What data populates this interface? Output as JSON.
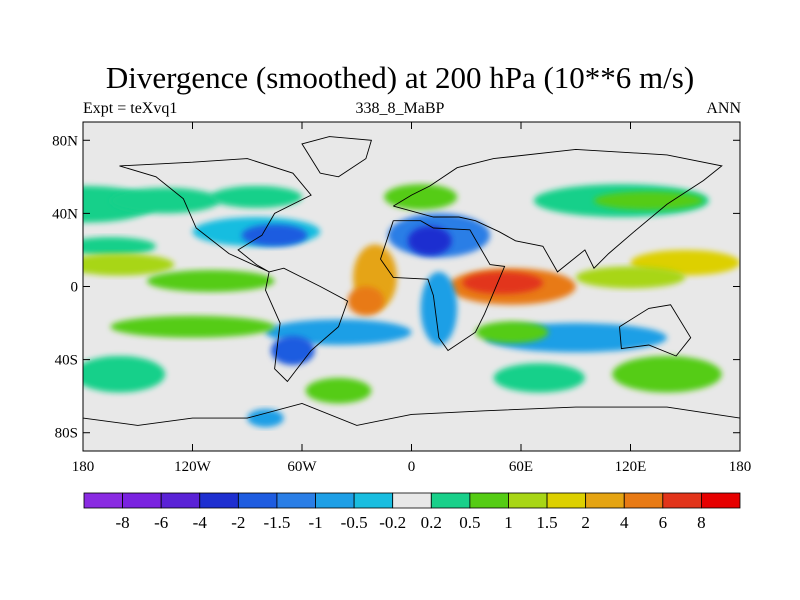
{
  "chart_data": {
    "type": "heatmap",
    "title": "Divergence (smoothed) at 200 hPa (10**6 m/s)",
    "subtitle_left": "Expt = teXvq1",
    "subtitle_center": "338_8_MaBP",
    "subtitle_right": "ANN",
    "x_ticks": [
      {
        "value": -180,
        "label": "180"
      },
      {
        "value": -120,
        "label": "120W"
      },
      {
        "value": -60,
        "label": "60W"
      },
      {
        "value": 0,
        "label": "0"
      },
      {
        "value": 60,
        "label": "60E"
      },
      {
        "value": 120,
        "label": "120E"
      },
      {
        "value": 180,
        "label": "180"
      }
    ],
    "y_ticks": [
      {
        "value": 80,
        "label": "80N"
      },
      {
        "value": 40,
        "label": "40N"
      },
      {
        "value": 0,
        "label": "0"
      },
      {
        "value": -40,
        "label": "40S"
      },
      {
        "value": -80,
        "label": "80S"
      }
    ],
    "xlim": [
      -180,
      180
    ],
    "ylim": [
      -90,
      90
    ],
    "colorbar": {
      "colors": [
        "#8a2be2",
        "#7a22e0",
        "#5a22d6",
        "#1e2fd0",
        "#1e5ce0",
        "#2a7ee6",
        "#1e9fe6",
        "#19bde0",
        "#e8e8e8",
        "#19d08a",
        "#55cc14",
        "#a8d616",
        "#ddd000",
        "#e5a412",
        "#e87a14",
        "#e2341a",
        "#e60000"
      ],
      "labels": [
        "-8",
        "-6",
        "-4",
        "-2",
        "-1.5",
        "-1",
        "-0.5",
        "-0.2",
        "0.2",
        "0.5",
        "1",
        "1.5",
        "2",
        "4",
        "6",
        "8"
      ]
    },
    "field_blobs": [
      {
        "lon": -178,
        "lat": 45,
        "rlon": 38,
        "rlat": 10,
        "level": 9
      },
      {
        "lon": -135,
        "lat": 47,
        "rlon": 30,
        "rlat": 7,
        "level": 9
      },
      {
        "lon": -85,
        "lat": 49,
        "rlon": 25,
        "rlat": 6,
        "level": 9
      },
      {
        "lon": 5,
        "lat": 49,
        "rlon": 20,
        "rlat": 7,
        "level": 10
      },
      {
        "lon": 115,
        "lat": 47,
        "rlon": 48,
        "rlat": 9,
        "level": 9
      },
      {
        "lon": 130,
        "lat": 47,
        "rlon": 30,
        "rlat": 5,
        "level": 10
      },
      {
        "lon": -165,
        "lat": 22,
        "rlon": 25,
        "rlat": 5,
        "level": 9
      },
      {
        "lon": -85,
        "lat": 30,
        "rlon": 35,
        "rlat": 8,
        "level": 7
      },
      {
        "lon": -75,
        "lat": 28,
        "rlon": 18,
        "rlat": 6,
        "level": 4
      },
      {
        "lon": 15,
        "lat": 28,
        "rlon": 28,
        "rlat": 12,
        "level": 5
      },
      {
        "lon": 10,
        "lat": 25,
        "rlon": 12,
        "rlat": 8,
        "level": 3
      },
      {
        "lon": -160,
        "lat": 12,
        "rlon": 30,
        "rlat": 6,
        "level": 11
      },
      {
        "lon": 150,
        "lat": 13,
        "rlon": 30,
        "rlat": 7,
        "level": 12
      },
      {
        "lon": -110,
        "lat": 3,
        "rlon": 35,
        "rlat": 6,
        "level": 10
      },
      {
        "lon": -20,
        "lat": 5,
        "rlon": 12,
        "rlat": 18,
        "level": 13
      },
      {
        "lon": -25,
        "lat": -8,
        "rlon": 10,
        "rlat": 8,
        "level": 14
      },
      {
        "lon": 55,
        "lat": 0,
        "rlon": 35,
        "rlat": 10,
        "level": 14
      },
      {
        "lon": 50,
        "lat": 2,
        "rlon": 22,
        "rlat": 6,
        "level": 15
      },
      {
        "lon": 120,
        "lat": 5,
        "rlon": 30,
        "rlat": 6,
        "level": 11
      },
      {
        "lon": 15,
        "lat": -12,
        "rlon": 10,
        "rlat": 20,
        "level": 6
      },
      {
        "lon": -40,
        "lat": -25,
        "rlon": 40,
        "rlat": 7,
        "level": 6
      },
      {
        "lon": 90,
        "lat": -28,
        "rlon": 50,
        "rlat": 8,
        "level": 6
      },
      {
        "lon": -120,
        "lat": -22,
        "rlon": 45,
        "rlat": 6,
        "level": 10
      },
      {
        "lon": 55,
        "lat": -25,
        "rlon": 20,
        "rlat": 6,
        "level": 10
      },
      {
        "lon": -65,
        "lat": -35,
        "rlon": 12,
        "rlat": 8,
        "level": 4
      },
      {
        "lon": -160,
        "lat": -48,
        "rlon": 25,
        "rlat": 10,
        "level": 9
      },
      {
        "lon": 70,
        "lat": -50,
        "rlon": 25,
        "rlat": 8,
        "level": 9
      },
      {
        "lon": -40,
        "lat": -57,
        "rlon": 18,
        "rlat": 7,
        "level": 10
      },
      {
        "lon": 140,
        "lat": -48,
        "rlon": 30,
        "rlat": 10,
        "level": 10
      },
      {
        "lon": -80,
        "lat": -72,
        "rlon": 10,
        "rlat": 5,
        "level": 6
      }
    ]
  }
}
